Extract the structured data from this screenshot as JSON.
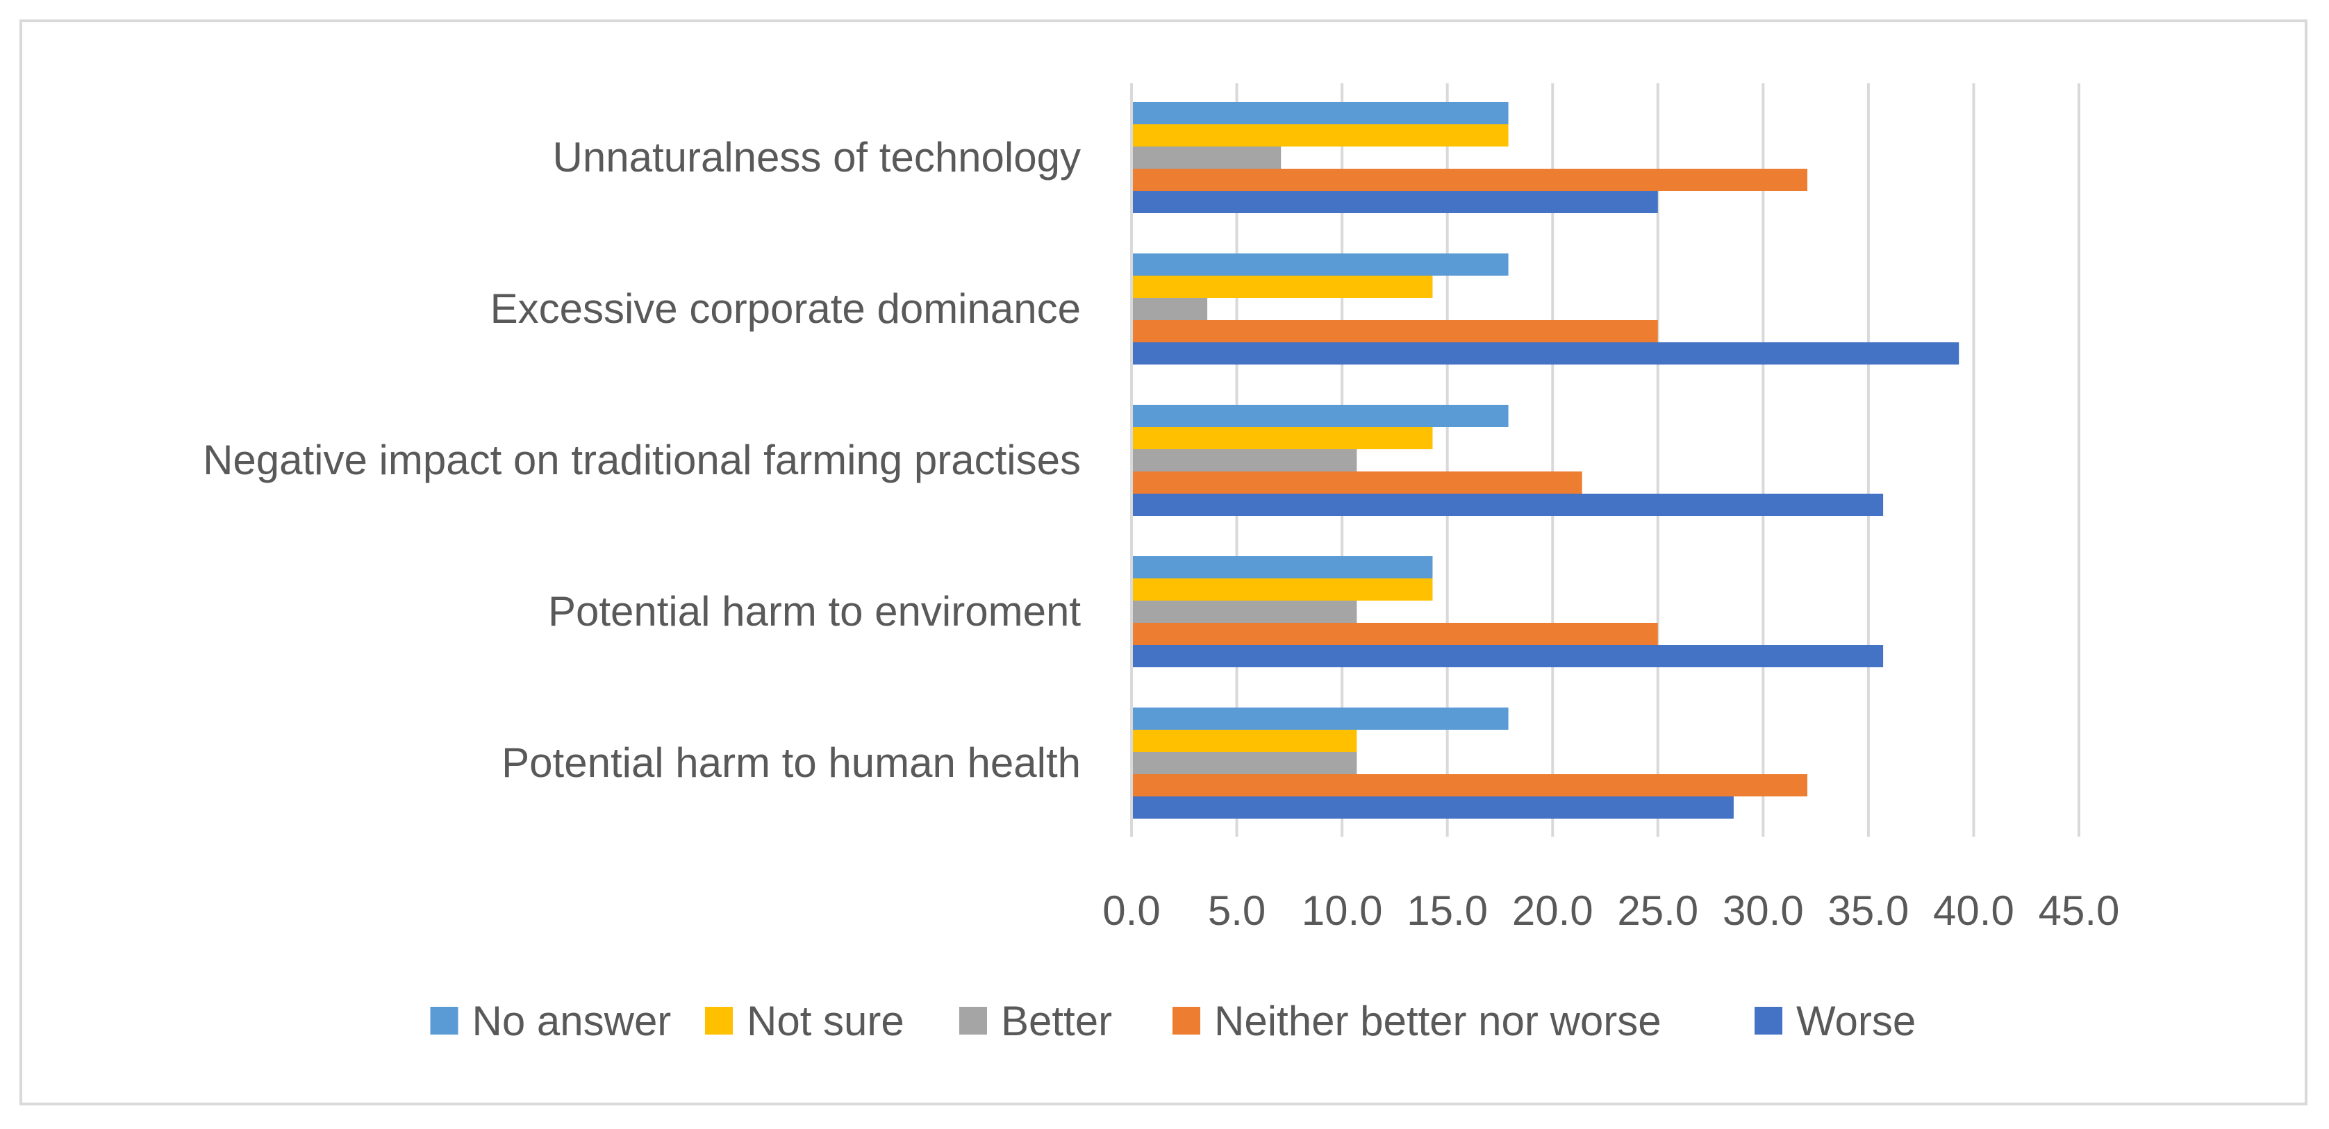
{
  "chart_data": {
    "type": "bar",
    "orientation": "horizontal",
    "title": "",
    "xlabel": "",
    "ylabel": "",
    "xlim": [
      0,
      45
    ],
    "tick_step": 5,
    "tick_labels": [
      "0.0",
      "5.0",
      "10.0",
      "15.0",
      "20.0",
      "25.0",
      "30.0",
      "35.0",
      "40.0",
      "45.0"
    ],
    "grid": true,
    "legend_position": "bottom",
    "categories": [
      "Unnaturalness of technology",
      "Excessive corporate dominance",
      "Negative impact on traditional farming practises",
      "Potential harm to enviroment",
      "Potential harm to human health"
    ],
    "series": [
      {
        "name": "No answer",
        "color": "#5B9BD5",
        "values": [
          17.9,
          17.9,
          17.9,
          14.3,
          17.9
        ]
      },
      {
        "name": "Not sure",
        "color": "#FFC000",
        "values": [
          17.9,
          14.3,
          14.3,
          14.3,
          10.7
        ]
      },
      {
        "name": "Better",
        "color": "#A5A5A5",
        "values": [
          7.1,
          3.6,
          10.7,
          10.7,
          10.7
        ]
      },
      {
        "name": "Neither better nor worse",
        "color": "#ED7D31",
        "values": [
          32.1,
          25.0,
          21.4,
          25.0,
          32.1
        ]
      },
      {
        "name": "Worse",
        "color": "#4472C4",
        "values": [
          25.0,
          39.3,
          35.7,
          35.7,
          28.6
        ]
      }
    ]
  },
  "colors": {
    "grid": "#d9d9d9",
    "text": "#595959",
    "border": "#d9d9d9"
  }
}
